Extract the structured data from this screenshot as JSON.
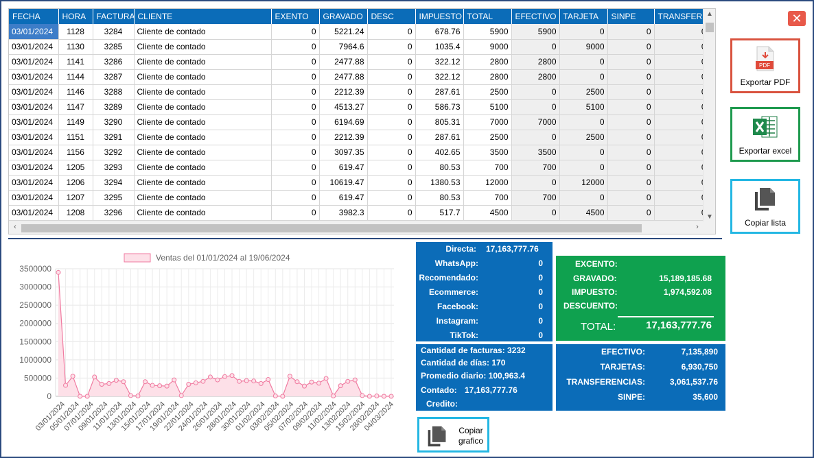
{
  "grid": {
    "columns": [
      "FECHA",
      "HORA",
      "FACTURA",
      "CLIENTE",
      "EXENTO",
      "GRAVADO",
      "DESC",
      "IMPUESTO",
      "TOTAL",
      "EFECTIVO",
      "TARJETA",
      "SINPE",
      "TRANSFERE"
    ],
    "rows": [
      [
        "03/01/2024",
        "1128",
        "3284",
        "Cliente de contado",
        "0",
        "5221.24",
        "0",
        "678.76",
        "5900",
        "5900",
        "0",
        "0",
        "0"
      ],
      [
        "03/01/2024",
        "1130",
        "3285",
        "Cliente de contado",
        "0",
        "7964.6",
        "0",
        "1035.4",
        "9000",
        "0",
        "9000",
        "0",
        "0"
      ],
      [
        "03/01/2024",
        "1141",
        "3286",
        "Cliente de contado",
        "0",
        "2477.88",
        "0",
        "322.12",
        "2800",
        "2800",
        "0",
        "0",
        "0"
      ],
      [
        "03/01/2024",
        "1144",
        "3287",
        "Cliente de contado",
        "0",
        "2477.88",
        "0",
        "322.12",
        "2800",
        "2800",
        "0",
        "0",
        "0"
      ],
      [
        "03/01/2024",
        "1146",
        "3288",
        "Cliente de contado",
        "0",
        "2212.39",
        "0",
        "287.61",
        "2500",
        "0",
        "2500",
        "0",
        "0"
      ],
      [
        "03/01/2024",
        "1147",
        "3289",
        "Cliente de contado",
        "0",
        "4513.27",
        "0",
        "586.73",
        "5100",
        "0",
        "5100",
        "0",
        "0"
      ],
      [
        "03/01/2024",
        "1149",
        "3290",
        "Cliente de contado",
        "0",
        "6194.69",
        "0",
        "805.31",
        "7000",
        "7000",
        "0",
        "0",
        "0"
      ],
      [
        "03/01/2024",
        "1151",
        "3291",
        "Cliente de contado",
        "0",
        "2212.39",
        "0",
        "287.61",
        "2500",
        "0",
        "2500",
        "0",
        "0"
      ],
      [
        "03/01/2024",
        "1156",
        "3292",
        "Cliente de contado",
        "0",
        "3097.35",
        "0",
        "402.65",
        "3500",
        "3500",
        "0",
        "0",
        "0"
      ],
      [
        "03/01/2024",
        "1205",
        "3293",
        "Cliente de contado",
        "0",
        "619.47",
        "0",
        "80.53",
        "700",
        "700",
        "0",
        "0",
        "0"
      ],
      [
        "03/01/2024",
        "1206",
        "3294",
        "Cliente de contado",
        "0",
        "10619.47",
        "0",
        "1380.53",
        "12000",
        "0",
        "12000",
        "0",
        "0"
      ],
      [
        "03/01/2024",
        "1207",
        "3295",
        "Cliente de contado",
        "0",
        "619.47",
        "0",
        "80.53",
        "700",
        "700",
        "0",
        "0",
        "0"
      ],
      [
        "03/01/2024",
        "1208",
        "3296",
        "Cliente de contado",
        "0",
        "3982.3",
        "0",
        "517.7",
        "4500",
        "0",
        "4500",
        "0",
        "0"
      ]
    ]
  },
  "buttons": {
    "close_icon": "close-icon",
    "pdf_label": "Exportar PDF",
    "pdf_icon_text": "PDF",
    "excel_label": "Exportar excel",
    "copy_list_label": "Copiar lista",
    "copy_chart_line1": "Copiar",
    "copy_chart_line2": "grafico"
  },
  "chart_data": {
    "type": "line",
    "legend": "Ventas del 01/01/2024 al 19/06/2024",
    "ylim": [
      0,
      3500000
    ],
    "yticks": [
      "0",
      "500000",
      "1000000",
      "1500000",
      "2000000",
      "2500000",
      "3000000",
      "3500000"
    ],
    "xtick_labels": [
      "03/01/2024",
      "05/01/2024",
      "07/01/2024",
      "09/01/2024",
      "11/01/2024",
      "13/01/2024",
      "15/01/2024",
      "17/01/2024",
      "19/01/2024",
      "22/01/2024",
      "24/01/2024",
      "26/01/2024",
      "28/01/2024",
      "30/01/2024",
      "01/02/2024",
      "03/02/2024",
      "05/02/2024",
      "07/02/2024",
      "09/02/2024",
      "11/02/2024",
      "13/02/2024",
      "15/02/2024",
      "28/02/2024",
      "04/03/2024"
    ],
    "values": [
      3400000,
      300000,
      550000,
      0,
      0,
      530000,
      330000,
      350000,
      440000,
      400000,
      20000,
      10000,
      400000,
      300000,
      290000,
      280000,
      450000,
      20000,
      330000,
      370000,
      410000,
      530000,
      450000,
      540000,
      570000,
      410000,
      430000,
      420000,
      350000,
      460000,
      10000,
      0,
      550000,
      400000,
      280000,
      390000,
      360000,
      490000,
      10000,
      290000,
      410000,
      450000,
      20000,
      0,
      10000,
      0,
      0
    ],
    "line_color": "#f07aa0",
    "fill_color": "#fde0e8"
  },
  "channels": [
    {
      "label": "Directa:",
      "value": "17,163,777.76"
    },
    {
      "label": "WhatsApp:",
      "value": "0"
    },
    {
      "label": "Recomendado:",
      "value": "0"
    },
    {
      "label": "Ecommerce:",
      "value": "0"
    },
    {
      "label": "Facebook:",
      "value": "0"
    },
    {
      "label": "Instagram:",
      "value": "0"
    },
    {
      "label": "TikTok:",
      "value": "0"
    }
  ],
  "summary": {
    "facturas": "Cantidad de facturas: 3232",
    "dias": "Cantidad de días: 170",
    "promedio": "Promedio diario: 100,963.4",
    "contado_label": "Contado:",
    "contado_value": "17,163,777.76",
    "credito_label": "Credito:"
  },
  "taxes": {
    "excento_label": "EXCENTO:",
    "gravado_label": "GRAVADO:",
    "gravado_value": "15,189,185.68",
    "impuesto_label": "IMPUESTO:",
    "impuesto_value": "1,974,592.08",
    "descuento_label": "DESCUENTO:",
    "total_label": "TOTAL:",
    "total_value": "17,163,777.76"
  },
  "payments": [
    {
      "label": "EFECTIVO:",
      "value": "7,135,890"
    },
    {
      "label": "TARJETAS:",
      "value": "6,930,750"
    },
    {
      "label": "TRANSFERENCIAS:",
      "value": "3,061,537.76"
    },
    {
      "label": "SINPE:",
      "value": "35,600"
    }
  ],
  "colors": {
    "header_blue": "#0b6cb8",
    "green_panel": "#0fa14f",
    "selected_cell": "#3d7dc8"
  }
}
